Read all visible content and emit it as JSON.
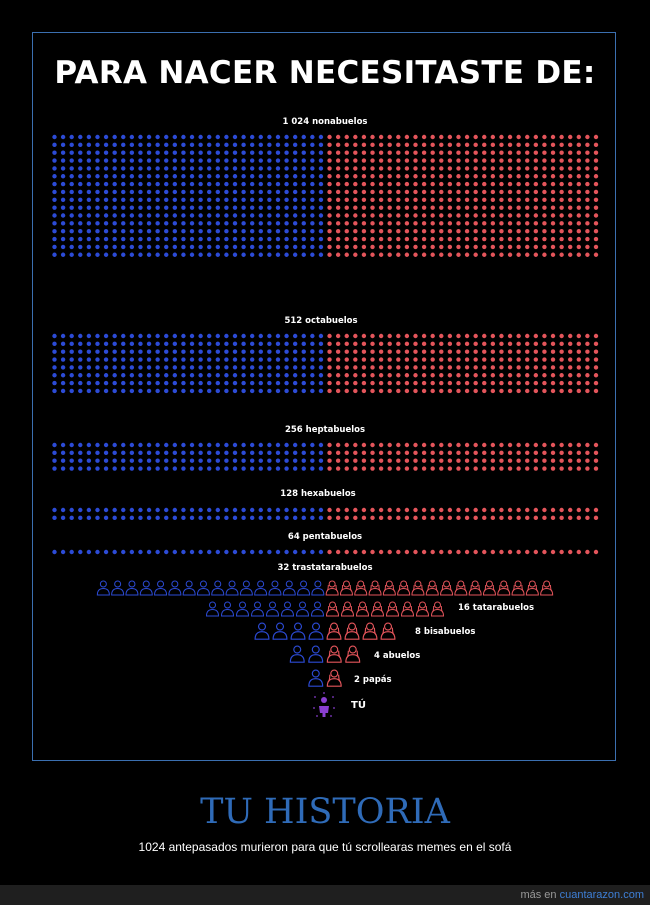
{
  "title": "PARA NACER NECESITASTE DE:",
  "colors": {
    "father_side": "#2c4bd6",
    "mother_side": "#e4555b",
    "you": "#8a3fd1",
    "frame": "#3b6fb0"
  },
  "generations": [
    {
      "count": 1024,
      "label": "1 024 nonabuelos",
      "display": "dots"
    },
    {
      "count": 512,
      "label": "512 octabuelos",
      "display": "dots"
    },
    {
      "count": 256,
      "label": "256 heptabuelos",
      "display": "dots"
    },
    {
      "count": 128,
      "label": "128 hexabuelos",
      "display": "dots"
    },
    {
      "count": 64,
      "label": "64 pentabuelos",
      "display": "dots"
    },
    {
      "count": 32,
      "label": "32 trastatarabuelos",
      "display": "icons"
    },
    {
      "count": 16,
      "label": "16 tatarabuelos",
      "display": "icons"
    },
    {
      "count": 8,
      "label": "8 bisabuelos",
      "display": "icons"
    },
    {
      "count": 4,
      "label": "4 abuelos",
      "display": "icons"
    },
    {
      "count": 2,
      "label": "2 papás",
      "display": "icons"
    }
  ],
  "you_label": "TÚ",
  "bottom_title": "TU HISTORIA",
  "bottom_subtitle": "1024 antepasados murieron para que tú scrollearas memes en el sofá",
  "footer": {
    "prefix": "más en ",
    "site": "cuantarazon.com"
  },
  "icons": {
    "ancestor_male": "person-bust-icon",
    "ancestor_female": "person-long-hair-icon",
    "you": "person-sparkle-icon"
  }
}
